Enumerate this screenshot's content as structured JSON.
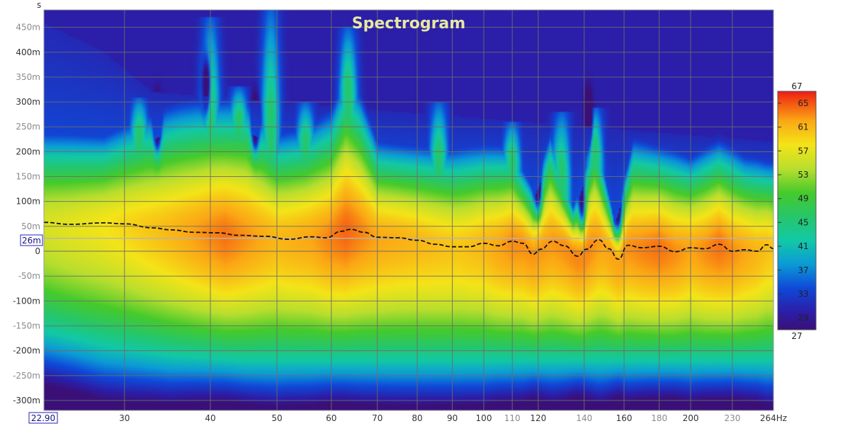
{
  "chart_data": {
    "type": "heatmap",
    "title": "Spectrogram",
    "y_unit_label": "s",
    "x_scale": "log",
    "xlim": [
      22.9,
      264
    ],
    "ylim": [
      -0.32,
      0.485
    ],
    "x_ticks": [
      {
        "value": 30,
        "label": "30",
        "minor": false
      },
      {
        "value": 40,
        "label": "40",
        "minor": false
      },
      {
        "value": 50,
        "label": "50",
        "minor": false
      },
      {
        "value": 60,
        "label": "60",
        "minor": false
      },
      {
        "value": 70,
        "label": "70",
        "minor": false
      },
      {
        "value": 80,
        "label": "80",
        "minor": false
      },
      {
        "value": 90,
        "label": "90",
        "minor": false
      },
      {
        "value": 100,
        "label": "100",
        "minor": false
      },
      {
        "value": 110,
        "label": "110",
        "minor": true
      },
      {
        "value": 120,
        "label": "120",
        "minor": false
      },
      {
        "value": 140,
        "label": "140",
        "minor": true
      },
      {
        "value": 160,
        "label": "160",
        "minor": false
      },
      {
        "value": 180,
        "label": "180",
        "minor": true
      },
      {
        "value": 200,
        "label": "200",
        "minor": false
      },
      {
        "value": 230,
        "label": "230",
        "minor": true
      }
    ],
    "x_end_label": "264Hz",
    "x_start_label": "22.90",
    "y_ticks": [
      {
        "value": 0.45,
        "label": "450m",
        "minor": true
      },
      {
        "value": 0.4,
        "label": "400m",
        "minor": false
      },
      {
        "value": 0.35,
        "label": "350m",
        "minor": true
      },
      {
        "value": 0.3,
        "label": "300m",
        "minor": false
      },
      {
        "value": 0.25,
        "label": "250m",
        "minor": true
      },
      {
        "value": 0.2,
        "label": "200m",
        "minor": false
      },
      {
        "value": 0.15,
        "label": "150m",
        "minor": true
      },
      {
        "value": 0.1,
        "label": "100m",
        "minor": false
      },
      {
        "value": 0.05,
        "label": "50m",
        "minor": true
      },
      {
        "value": 0.0,
        "label": "0",
        "minor": false
      },
      {
        "value": -0.05,
        "label": "-50m",
        "minor": true
      },
      {
        "value": -0.1,
        "label": "-100m",
        "minor": false
      },
      {
        "value": -0.15,
        "label": "-150m",
        "minor": true
      },
      {
        "value": -0.2,
        "label": "-200m",
        "minor": false
      },
      {
        "value": -0.25,
        "label": "-250m",
        "minor": true
      },
      {
        "value": -0.3,
        "label": "-300m",
        "minor": false
      }
    ],
    "cursor": {
      "value": 0.026,
      "label": "26m"
    },
    "colorbar": {
      "min": 27,
      "max": 67,
      "min_label": "27",
      "max_label": "67",
      "ticks": [
        29,
        33,
        37,
        41,
        45,
        49,
        53,
        57,
        61,
        65
      ],
      "stops": [
        {
          "value": 27,
          "color": "#3a1078"
        },
        {
          "value": 30,
          "color": "#2b1ea8"
        },
        {
          "value": 34,
          "color": "#0f49d8"
        },
        {
          "value": 38,
          "color": "#0b9bd6"
        },
        {
          "value": 42,
          "color": "#12c8a6"
        },
        {
          "value": 46,
          "color": "#26c66a"
        },
        {
          "value": 50,
          "color": "#46ca2c"
        },
        {
          "value": 54,
          "color": "#b8de2e"
        },
        {
          "value": 58,
          "color": "#f4e418"
        },
        {
          "value": 62,
          "color": "#fba814"
        },
        {
          "value": 66,
          "color": "#f23a12"
        },
        {
          "value": 67,
          "color": "#e81c1c"
        }
      ]
    },
    "background_color": "#3a1078",
    "peak_time_curve": {
      "style": "dashed",
      "color": "#111111",
      "points": [
        [
          22.9,
          0.058
        ],
        [
          25,
          0.054
        ],
        [
          28,
          0.057
        ],
        [
          30,
          0.055
        ],
        [
          33,
          0.047
        ],
        [
          35,
          0.043
        ],
        [
          38,
          0.038
        ],
        [
          41,
          0.037
        ],
        [
          44,
          0.032
        ],
        [
          48,
          0.03
        ],
        [
          52,
          0.024
        ],
        [
          56,
          0.029
        ],
        [
          59,
          0.027
        ],
        [
          62,
          0.04
        ],
        [
          64,
          0.044
        ],
        [
          67,
          0.038
        ],
        [
          70,
          0.028
        ],
        [
          75,
          0.027
        ],
        [
          80,
          0.022
        ],
        [
          85,
          0.014
        ],
        [
          90,
          0.009
        ],
        [
          95,
          0.009
        ],
        [
          100,
          0.016
        ],
        [
          105,
          0.011
        ],
        [
          110,
          0.02
        ],
        [
          114,
          0.016
        ],
        [
          118,
          -0.006
        ],
        [
          121,
          0.004
        ],
        [
          126,
          0.02
        ],
        [
          131,
          0.011
        ],
        [
          137,
          -0.01
        ],
        [
          141,
          0.004
        ],
        [
          147,
          0.023
        ],
        [
          152,
          0.005
        ],
        [
          157,
          -0.016
        ],
        [
          162,
          0.012
        ],
        [
          170,
          0.007
        ],
        [
          180,
          0.01
        ],
        [
          190,
          -0.001
        ],
        [
          200,
          0.007
        ],
        [
          210,
          0.005
        ],
        [
          220,
          0.014
        ],
        [
          230,
          0.0
        ],
        [
          240,
          0.003
        ],
        [
          250,
          0.0
        ],
        [
          258,
          0.013
        ],
        [
          264,
          0.005
        ]
      ]
    },
    "ridge": {
      "peak_db": [
        [
          22.9,
          56
        ],
        [
          28,
          58
        ],
        [
          35,
          61
        ],
        [
          42,
          64
        ],
        [
          50,
          61
        ],
        [
          56,
          62
        ],
        [
          63,
          64.5
        ],
        [
          70,
          62
        ],
        [
          80,
          61
        ],
        [
          92,
          60
        ],
        [
          100,
          61
        ],
        [
          110,
          63
        ],
        [
          125,
          62.5
        ],
        [
          140,
          63.5
        ],
        [
          150,
          62
        ],
        [
          165,
          63
        ],
        [
          180,
          64
        ],
        [
          200,
          62
        ],
        [
          220,
          64
        ],
        [
          240,
          62
        ],
        [
          264,
          60
        ]
      ],
      "upper_extent": [
        [
          22.9,
          0.19
        ],
        [
          28,
          0.19
        ],
        [
          32,
          0.22
        ],
        [
          36,
          0.24
        ],
        [
          40,
          0.25
        ],
        [
          45,
          0.25
        ],
        [
          50,
          0.19
        ],
        [
          55,
          0.2
        ],
        [
          60,
          0.23
        ],
        [
          63,
          0.3
        ],
        [
          66,
          0.26
        ],
        [
          70,
          0.18
        ],
        [
          80,
          0.17
        ],
        [
          90,
          0.16
        ],
        [
          100,
          0.17
        ],
        [
          110,
          0.17
        ],
        [
          118,
          0.1
        ],
        [
          125,
          0.19
        ],
        [
          135,
          0.07
        ],
        [
          145,
          0.2
        ],
        [
          155,
          0.05
        ],
        [
          165,
          0.18
        ],
        [
          180,
          0.17
        ],
        [
          200,
          0.15
        ],
        [
          220,
          0.18
        ],
        [
          240,
          0.15
        ],
        [
          264,
          0.14
        ]
      ],
      "lower_extent": [
        [
          22.9,
          -0.16
        ],
        [
          28,
          -0.19
        ],
        [
          35,
          -0.21
        ],
        [
          45,
          -0.22
        ],
        [
          60,
          -0.22
        ],
        [
          80,
          -0.22
        ],
        [
          100,
          -0.22
        ],
        [
          140,
          -0.22
        ],
        [
          200,
          -0.22
        ],
        [
          264,
          -0.22
        ]
      ],
      "upper_spikes": [
        {
          "x": 40,
          "top": 0.47
        },
        {
          "x": 49,
          "top": 0.49
        },
        {
          "x": 63.5,
          "top": 0.45
        },
        {
          "x": 31.5,
          "top": 0.31
        },
        {
          "x": 44,
          "top": 0.33
        },
        {
          "x": 55,
          "top": 0.3
        },
        {
          "x": 86,
          "top": 0.3
        },
        {
          "x": 110,
          "top": 0.26
        },
        {
          "x": 130,
          "top": 0.28
        },
        {
          "x": 145,
          "top": 0.29
        }
      ],
      "holes": [
        {
          "x": 39.5,
          "y": 0.33
        },
        {
          "x": 33.5,
          "y": 0.25
        },
        {
          "x": 46.5,
          "y": 0.25
        },
        {
          "x": 120,
          "y": 0.12
        },
        {
          "x": 139,
          "y": 0.09
        },
        {
          "x": 157,
          "y": 0.08
        },
        {
          "x": 142,
          "y": 0.26
        }
      ],
      "low_band": [
        [
          22.9,
          0.46
        ],
        [
          28,
          0.4
        ],
        [
          33,
          0.32
        ],
        [
          264,
          0.22
        ]
      ]
    }
  }
}
